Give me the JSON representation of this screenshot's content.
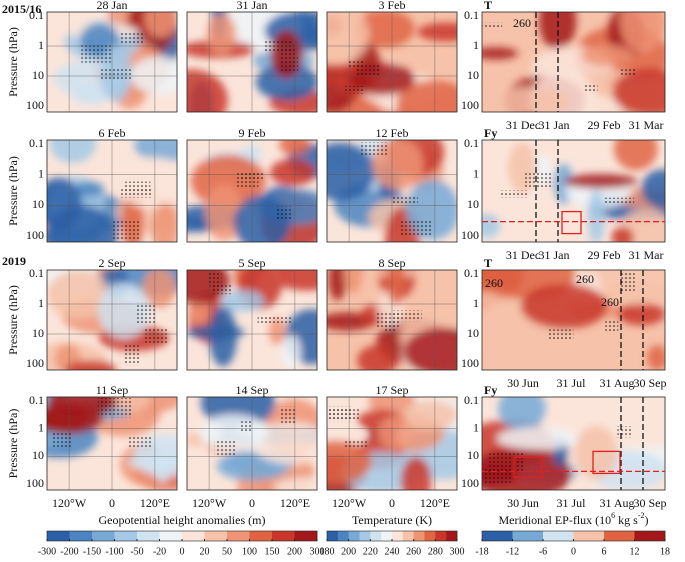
{
  "figure": {
    "y_axis_label": "Pressure (hPa)",
    "pressure_ticks": [
      "0.1",
      "1",
      "10",
      "100"
    ],
    "lon_ticks": [
      "120°W",
      "0",
      "120°E"
    ],
    "groups": [
      "2015/16",
      "2019"
    ],
    "rows": [
      {
        "titles": [
          "28 Jan",
          "31 Jan",
          "3 Feb"
        ]
      },
      {
        "titles": [
          "6 Feb",
          "9 Feb",
          "12 Feb"
        ]
      },
      {
        "titles": [
          "2 Sep",
          "5 Sep",
          "8 Sep"
        ]
      },
      {
        "titles": [
          "11 Sep",
          "14 Sep",
          "17 Sep"
        ]
      }
    ],
    "side_panels": [
      {
        "label": "T",
        "contour_labels": [
          "260"
        ],
        "xticks": [
          "31 Dec",
          "31 Jan",
          "29 Feb",
          "31 Mar"
        ]
      },
      {
        "label": "Fy",
        "contour_labels": [],
        "xticks": [
          "31 Dec",
          "31 Jan",
          "29 Feb",
          "31 Mar"
        ]
      },
      {
        "label": "T",
        "contour_labels": [
          "260",
          "260",
          "260"
        ],
        "xticks": [
          "30 Jun",
          "31 Jul",
          "31 Aug",
          "30 Sep"
        ]
      },
      {
        "label": "Fy",
        "contour_labels": [],
        "xticks": [
          "30 Jun",
          "31 Jul",
          "31 Aug",
          "30 Sep"
        ]
      }
    ],
    "colorbars": [
      {
        "label": [
          "Geopotential height anomalies (m)"
        ],
        "ticks": [
          -300,
          -200,
          -150,
          -100,
          -50,
          -20,
          0,
          20,
          50,
          100,
          150,
          200,
          300
        ]
      },
      {
        "label": [
          "Temperature (K)"
        ],
        "ticks": [
          180,
          200,
          220,
          240,
          260,
          280,
          300
        ]
      },
      {
        "label": [
          "Meridional EP-flux (10",
          "6",
          " kg s",
          "-2",
          ")"
        ],
        "ticks": [
          -18,
          -12,
          -6,
          0,
          6,
          12,
          18
        ]
      }
    ],
    "colors": [
      "#2b5fa6",
      "#4b85c1",
      "#77a9d6",
      "#a5c9e6",
      "#d0e3f1",
      "#eef4f8",
      "#fbe5da",
      "#f6c2a9",
      "#ee9374",
      "#e06444",
      "#c9372b",
      "#a3191b"
    ]
  }
}
